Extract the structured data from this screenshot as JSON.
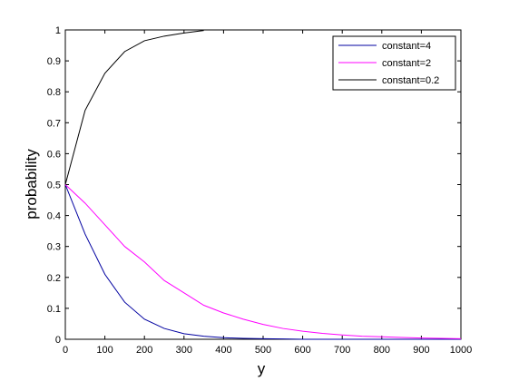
{
  "chart_data": {
    "type": "line",
    "x_label": "y",
    "y_label": "probability",
    "x": [
      0,
      50,
      100,
      150,
      200,
      250,
      300,
      350,
      400,
      450,
      500,
      550,
      600,
      650,
      700,
      750,
      800,
      850,
      900,
      950,
      1000
    ],
    "series": [
      {
        "name": "constant=4",
        "color": "#0000a0",
        "values": [
          0.5,
          0.34,
          0.21,
          0.12,
          0.065,
          0.035,
          0.018,
          0.01,
          0.005,
          0.003,
          0.002,
          0.001,
          0,
          0,
          0,
          0,
          0,
          0,
          0,
          0,
          0
        ]
      },
      {
        "name": "constant=2",
        "color": "#ff00ff",
        "values": [
          0.5,
          0.44,
          0.37,
          0.3,
          0.25,
          0.19,
          0.15,
          0.11,
          0.085,
          0.065,
          0.048,
          0.035,
          0.026,
          0.019,
          0.014,
          0.01,
          0.008,
          0.006,
          0.004,
          0.003,
          0.002
        ]
      },
      {
        "name": "constant=0.2",
        "color": "#000000",
        "values": [
          0.5,
          0.74,
          0.86,
          0.93,
          0.965,
          0.98,
          0.99,
          0.998,
          null,
          null,
          null,
          null,
          null,
          null,
          null,
          null,
          null,
          null,
          null,
          null,
          null
        ]
      }
    ],
    "xlim": [
      0,
      1000
    ],
    "ylim": [
      0,
      1
    ],
    "xticks": [
      0,
      100,
      200,
      300,
      400,
      500,
      600,
      700,
      800,
      900,
      1000
    ],
    "yticks": [
      0,
      0.1,
      0.2,
      0.3,
      0.4,
      0.5,
      0.6,
      0.7,
      0.8,
      0.9,
      1
    ],
    "legend": "top-right",
    "grid": false
  }
}
